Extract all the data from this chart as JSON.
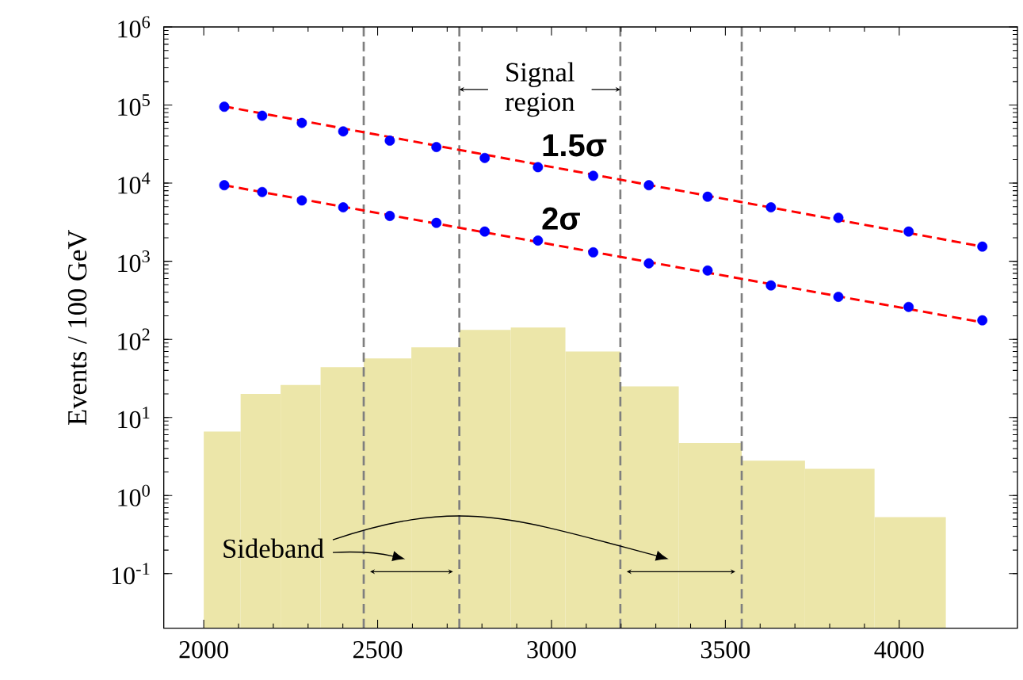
{
  "chart_data": {
    "type": "histogram",
    "ylabel": "Events / 100 GeV",
    "bins": [
      2000,
      2106,
      2221,
      2336,
      2460,
      2597,
      2735,
      2883,
      3040,
      3198,
      3366,
      3547,
      3729,
      3929,
      4134
    ],
    "values": [
      6.6,
      20,
      26,
      44,
      57,
      79,
      132,
      142,
      70,
      25,
      4.7,
      2.8,
      2.2,
      0.53
    ],
    "color": "#ece6a9",
    "series": [
      {
        "name": "1.5σ",
        "type": "scatter",
        "color": "#0000ff",
        "marker": "circle",
        "x": [
          2059,
          2168,
          2282,
          2401,
          2535,
          2669,
          2808,
          2961,
          3120,
          3280,
          3449,
          3631,
          3825,
          4027,
          4239
        ],
        "values": [
          95000,
          73000,
          59000,
          46000,
          35000,
          29000,
          21000,
          16000,
          12400,
          9400,
          6700,
          4900,
          3600,
          2400,
          1540
        ]
      },
      {
        "name": "2σ",
        "type": "scatter",
        "color": "#0000ff",
        "marker": "circle",
        "x": [
          2059,
          2168,
          2282,
          2401,
          2535,
          2669,
          2808,
          2961,
          3120,
          3280,
          3449,
          3631,
          3825,
          4027,
          4239
        ],
        "values": [
          9400,
          7700,
          6000,
          4900,
          3800,
          3100,
          2400,
          1840,
          1300,
          940,
          760,
          490,
          350,
          260,
          175
        ]
      },
      {
        "type": "line",
        "color": "#ff0000",
        "line_style": "dashed",
        "x": [
          2059,
          4239
        ],
        "values": [
          96000,
          1540
        ]
      },
      {
        "type": "line",
        "color": "#ff0000",
        "line_style": "dashed",
        "x": [
          2059,
          4239
        ],
        "values": [
          9400,
          165
        ]
      }
    ],
    "xlim": [
      1885,
      4340
    ],
    "ylim": [
      0.02,
      1000000
    ],
    "log": "y",
    "xticks": [
      2000,
      2500,
      3000,
      3500,
      4000
    ],
    "yticks": [
      {
        "value": 0.1,
        "label": "10$^{-1}$"
      },
      {
        "value": 1,
        "label": "10$^{0}$"
      },
      {
        "value": 10,
        "label": "10$^{1}$"
      },
      {
        "value": 100,
        "label": "10$^{2}$"
      },
      {
        "value": 1000,
        "label": "10$^{3}$"
      },
      {
        "value": 10000,
        "label": "10$^{4}$"
      },
      {
        "value": 100000,
        "label": "10$^{5}$"
      },
      {
        "value": 1000000,
        "label": "10$^{6}$"
      }
    ],
    "ref_lines": [
      {
        "axis": "x",
        "value": 2460,
        "color": "#7f7f7f",
        "line_style": "dashed"
      },
      {
        "axis": "x",
        "value": 2735,
        "color": "#7f7f7f",
        "line_style": "dashed"
      },
      {
        "axis": "x",
        "value": 3198,
        "color": "#7f7f7f",
        "line_style": "dashed"
      },
      {
        "axis": "x",
        "value": 3547,
        "color": "#7f7f7f",
        "line_style": "dashed"
      }
    ],
    "annotations": [
      "Signal region",
      "Sideband"
    ]
  }
}
